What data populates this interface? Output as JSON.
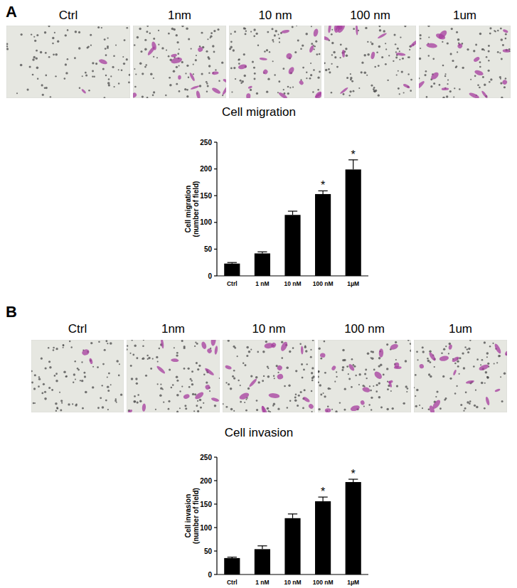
{
  "figure": {
    "panels": [
      {
        "label": "A",
        "image_labels": [
          "Ctrl",
          "1nm",
          "10 nm",
          "100 nm",
          "1um"
        ]
      },
      {
        "label": "B",
        "image_labels": [
          "Ctrl",
          "1nm",
          "10 nm",
          "100 nm",
          "1um"
        ]
      }
    ]
  },
  "chart_data": [
    {
      "type": "bar",
      "title": "Cell migration",
      "y_label": [
        "Cell migration",
        "(number of field)"
      ],
      "categories": [
        "Ctrl",
        "1 nM",
        "10 nM",
        "100 nM",
        "1μM"
      ],
      "values": [
        23,
        42,
        114,
        153,
        199
      ],
      "errors": [
        2,
        3,
        7,
        6,
        18
      ],
      "annotations": [
        {
          "index": 3,
          "text": "*"
        },
        {
          "index": 4,
          "text": "*"
        }
      ],
      "color": "#000000",
      "ylim": [
        0,
        250
      ],
      "yticks": [
        0,
        50,
        100,
        150,
        200,
        250
      ],
      "grid": false
    },
    {
      "type": "bar",
      "title": "Cell invasion",
      "y_label": [
        "Cell invasion",
        "(number of field)"
      ],
      "categories": [
        "Ctrl",
        "1 nM",
        "10 nM",
        "100 nM",
        "1μM"
      ],
      "values": [
        35,
        54,
        120,
        156,
        197
      ],
      "errors": [
        2,
        7,
        9,
        9,
        6
      ],
      "annotations": [
        {
          "index": 3,
          "text": "*"
        },
        {
          "index": 4,
          "text": "*"
        }
      ],
      "color": "#000000",
      "ylim": [
        0,
        250
      ],
      "yticks": [
        0,
        50,
        100,
        150,
        200,
        250
      ],
      "grid": false
    }
  ]
}
